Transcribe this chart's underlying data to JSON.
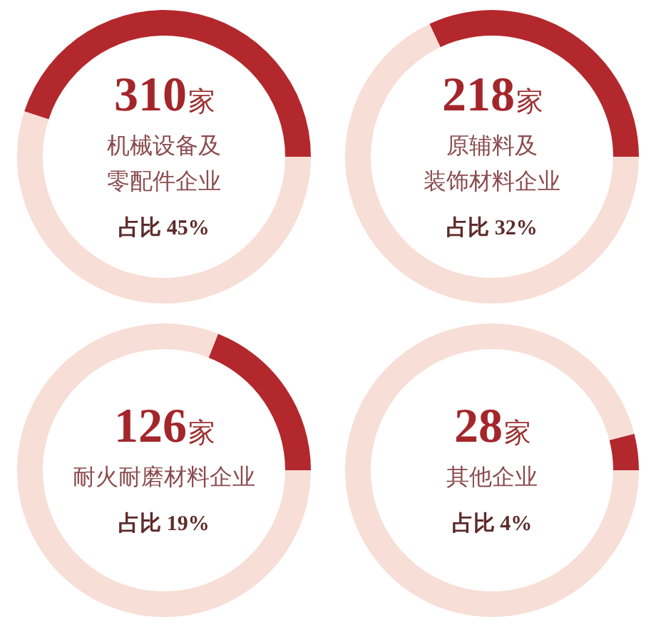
{
  "chart_data": [
    {
      "type": "donut",
      "title": "310家",
      "subtitle": "机械设备及零配件企业",
      "categories": [
        null,
        null
      ],
      "values": [
        45,
        55
      ],
      "colors": [
        "#b3282d",
        "#f7ded6"
      ],
      "annotations": [
        "占比 45%"
      ]
    },
    {
      "type": "donut",
      "title": "218家",
      "subtitle": "原辅料及装饰材料企业",
      "categories": [
        null,
        null
      ],
      "values": [
        32,
        68
      ],
      "colors": [
        "#b3282d",
        "#f7ded6"
      ],
      "annotations": [
        "占比 32%"
      ]
    },
    {
      "type": "donut",
      "title": "126家",
      "subtitle": "耐火耐磨材料企业",
      "categories": [
        null,
        null
      ],
      "values": [
        19,
        81
      ],
      "colors": [
        "#b3282d",
        "#f7ded6"
      ],
      "annotations": [
        "占比 19%"
      ]
    },
    {
      "type": "donut",
      "title": "28家",
      "subtitle": "其他企业",
      "categories": [
        null,
        null
      ],
      "values": [
        4,
        96
      ],
      "colors": [
        "#b3282d",
        "#f7ded6"
      ],
      "annotations": [
        "占比 4%"
      ]
    }
  ]
}
